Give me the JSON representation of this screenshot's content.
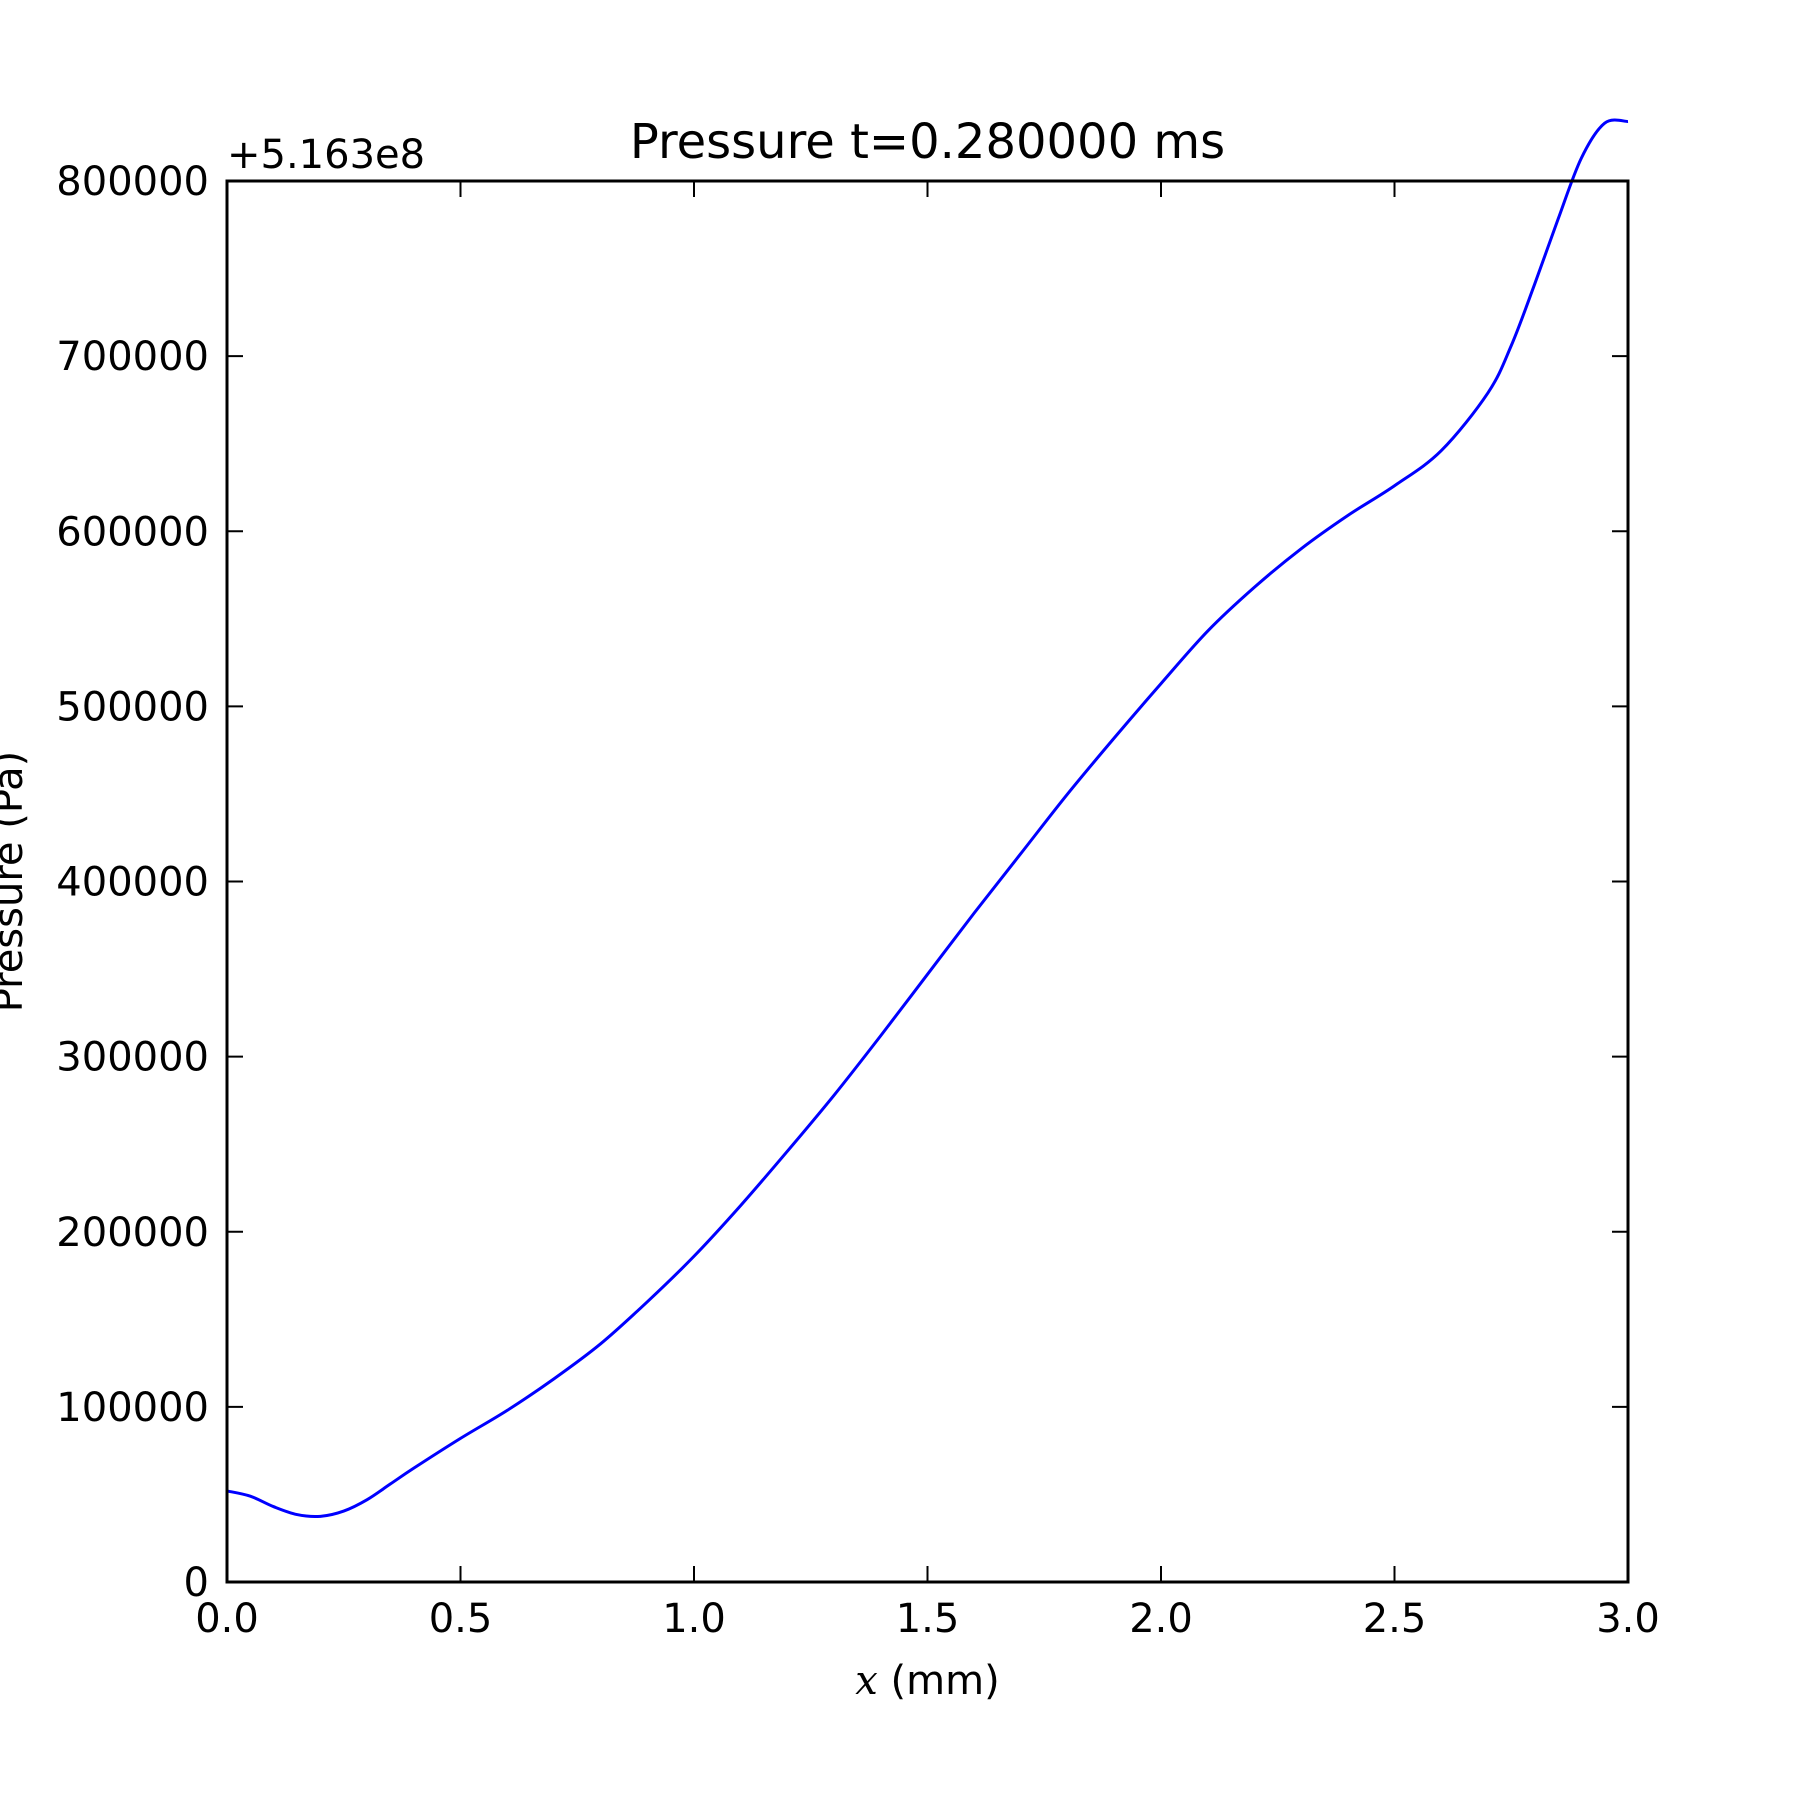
{
  "chart_data": {
    "type": "line",
    "title": "Pressure t=0.280000 ms",
    "xlabel_symbol": "x",
    "xlabel_unit": " (mm)",
    "ylabel": "Pressure (Pa)",
    "y_offset_label": "+5.163e8",
    "xlim": [
      0.0,
      3.0
    ],
    "ylim": [
      0,
      800000
    ],
    "xticks": [
      "0.0",
      "0.5",
      "1.0",
      "1.5",
      "2.0",
      "2.5",
      "3.0"
    ],
    "yticks": [
      "0",
      "100000",
      "200000",
      "300000",
      "400000",
      "500000",
      "600000",
      "700000",
      "800000"
    ],
    "grid": false,
    "series": [
      {
        "color": "#0000ff",
        "x": [
          0.0,
          0.05,
          0.1,
          0.15,
          0.2,
          0.25,
          0.3,
          0.35,
          0.4,
          0.5,
          0.6,
          0.7,
          0.8,
          0.9,
          1.0,
          1.1,
          1.2,
          1.3,
          1.4,
          1.5,
          1.6,
          1.7,
          1.8,
          1.9,
          2.0,
          2.1,
          2.2,
          2.3,
          2.4,
          2.5,
          2.6,
          2.7,
          2.75,
          2.8,
          2.85,
          2.9,
          2.95,
          3.0
        ],
        "y": [
          52000,
          49000,
          43000,
          38500,
          37500,
          40500,
          47000,
          56000,
          65000,
          82000,
          98000,
          116000,
          136000,
          160000,
          186000,
          215000,
          246000,
          278000,
          312000,
          347000,
          382000,
          416000,
          450000,
          482000,
          513000,
          543000,
          568000,
          590000,
          609000,
          626000,
          646000,
          679000,
          706000,
          741000,
          778000,
          813000,
          833000,
          834000
        ]
      }
    ]
  }
}
